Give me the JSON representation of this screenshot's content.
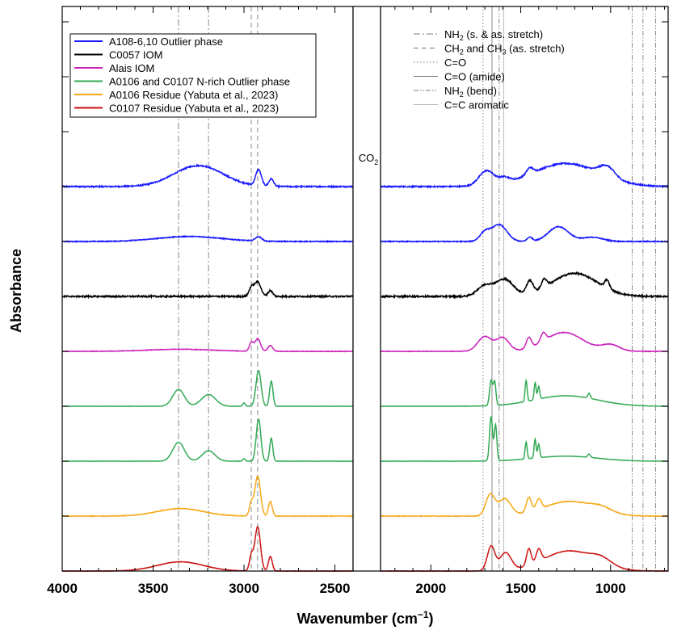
{
  "chart_data": {
    "type": "line",
    "xlabel": "Wavenumber (cm",
    "xlabel_sup": "−1",
    "xlabel_tail": ")",
    "ylabel": "Absorbance",
    "xlim_left_panel": [
      4000,
      2400
    ],
    "xlim_right_panel": [
      2280,
      680
    ],
    "x_ticks_left": [
      4000,
      3500,
      3000,
      2500
    ],
    "x_ticks_right": [
      2000,
      1500,
      1000
    ],
    "gap_label": "CO",
    "gap_label_sub": "2",
    "legend": {
      "placement": "top-left",
      "entries": [
        {
          "name": "A108-6,10 Outlier phase",
          "color": "#1a1aff"
        },
        {
          "name": "C0057 IOM",
          "color": "#000000"
        },
        {
          "name": "Alais IOM",
          "color": "#cc22bb"
        },
        {
          "name": "A0106 and C0107 N-rich Outlier phase",
          "color": "#33aa55"
        },
        {
          "name": "A0106 Residue (Yabuta et al., 2023)",
          "color": "#f5a818"
        },
        {
          "name": "C0107 Residue (Yabuta et al., 2023)",
          "color": "#cc1111"
        }
      ]
    },
    "reference_lines_legend": [
      {
        "pre": "NH",
        "sub": "2",
        "post": " (s. & as. stretch)",
        "dash": "8 3 2 3"
      },
      {
        "pre": "CH",
        "sub": "2",
        "mid": " and CH",
        "sub2": "3",
        "post": " (as. stretch)",
        "dash": "6 4"
      },
      {
        "pre": "C=O",
        "dash": "1.5 2.5"
      },
      {
        "pre": "C=O (amide)",
        "dash": ""
      },
      {
        "pre": "NH",
        "sub": "2",
        "post": " (bend)",
        "dash": "6 2 1.5 2 1.5 2"
      },
      {
        "pre": "C=C aromatic",
        "dash": "",
        "light": true
      }
    ],
    "reference_lines": [
      {
        "x": 3360,
        "kind": "NH2 stretch"
      },
      {
        "x": 3195,
        "kind": "NH2 stretch"
      },
      {
        "x": 2960,
        "kind": "CH2 and CH3"
      },
      {
        "x": 2925,
        "kind": "CH2 and CH3"
      },
      {
        "x": 1710,
        "kind": "C=O"
      },
      {
        "x": 1660,
        "kind": "C=O (amide)"
      },
      {
        "x": 1620,
        "kind": "NH2 bend"
      },
      {
        "x": 1595,
        "kind": "C=C aromatic"
      },
      {
        "x": 880,
        "kind": "NH2 bend"
      },
      {
        "x": 820,
        "kind": "NH2 bend"
      },
      {
        "x": 750,
        "kind": "NH2 bend"
      }
    ],
    "series": [
      {
        "color": "#1a1aff",
        "offset": 8,
        "height": 0.75,
        "noise": 0.03,
        "peaks": [
          [
            3250,
            0.5,
            190
          ],
          [
            2920,
            0.38,
            22
          ],
          [
            2850,
            0.18,
            18
          ],
          [
            1690,
            0.35,
            60
          ],
          [
            1590,
            0.12,
            40
          ],
          [
            1450,
            0.15,
            25
          ],
          [
            1250,
            0.55,
            260
          ],
          [
            1020,
            0.25,
            60
          ]
        ]
      },
      {
        "color": "#1a1aff",
        "offset": 7,
        "height": 0.75,
        "noise": 0.02,
        "peaks": [
          [
            3300,
            0.12,
            250
          ],
          [
            2920,
            0.1,
            25
          ],
          [
            1700,
            0.2,
            40
          ],
          [
            1620,
            0.4,
            60
          ],
          [
            1450,
            0.1,
            20
          ],
          [
            1290,
            0.35,
            80
          ],
          [
            1100,
            0.1,
            80
          ]
        ]
      },
      {
        "color": "#000000",
        "offset": 6,
        "height": 0.75,
        "noise": 0.035,
        "peaks": [
          [
            2925,
            0.35,
            25
          ],
          [
            2960,
            0.2,
            18
          ],
          [
            2855,
            0.14,
            18
          ],
          [
            1700,
            0.25,
            60
          ],
          [
            1590,
            0.4,
            70
          ],
          [
            1450,
            0.3,
            25
          ],
          [
            1370,
            0.2,
            20
          ],
          [
            1200,
            0.55,
            180
          ],
          [
            1020,
            0.2,
            18
          ]
        ]
      },
      {
        "color": "#cc22bb",
        "offset": 5,
        "height": 0.75,
        "noise": 0.012,
        "peaks": [
          [
            3350,
            0.05,
            250
          ],
          [
            2925,
            0.3,
            22
          ],
          [
            2960,
            0.2,
            15
          ],
          [
            2855,
            0.14,
            18
          ],
          [
            1700,
            0.35,
            55
          ],
          [
            1600,
            0.32,
            50
          ],
          [
            1455,
            0.25,
            20
          ],
          [
            1375,
            0.2,
            20
          ],
          [
            1260,
            0.45,
            150
          ],
          [
            1000,
            0.15,
            70
          ]
        ]
      },
      {
        "color": "#33aa55",
        "offset": 4,
        "height": 0.75,
        "noise": 0.006,
        "peaks": [
          [
            3360,
            0.4,
            45
          ],
          [
            3195,
            0.28,
            55
          ],
          [
            2920,
            0.85,
            20
          ],
          [
            2850,
            0.6,
            13
          ],
          [
            3000,
            0.08,
            10
          ],
          [
            1665,
            0.6,
            12
          ],
          [
            1645,
            0.55,
            10
          ],
          [
            1470,
            0.5,
            8
          ],
          [
            1420,
            0.4,
            8
          ],
          [
            1400,
            0.3,
            8
          ],
          [
            1250,
            0.25,
            250
          ],
          [
            1120,
            0.12,
            10
          ]
        ]
      },
      {
        "color": "#33aa55",
        "offset": 3,
        "height": 0.75,
        "noise": 0.005,
        "peaks": [
          [
            3360,
            0.45,
            45
          ],
          [
            3195,
            0.25,
            50
          ],
          [
            2920,
            1.0,
            18
          ],
          [
            2850,
            0.55,
            12
          ],
          [
            3000,
            0.06,
            10
          ],
          [
            1665,
            1.05,
            12
          ],
          [
            1640,
            0.85,
            10
          ],
          [
            1470,
            0.4,
            8
          ],
          [
            1420,
            0.45,
            8
          ],
          [
            1400,
            0.32,
            8
          ],
          [
            1250,
            0.12,
            250
          ],
          [
            1120,
            0.08,
            10
          ]
        ]
      },
      {
        "color": "#f5a818",
        "offset": 2,
        "height": 0.75,
        "noise": 0.012,
        "peaks": [
          [
            3350,
            0.18,
            180
          ],
          [
            2925,
            0.95,
            22
          ],
          [
            2960,
            0.3,
            15
          ],
          [
            2855,
            0.35,
            15
          ],
          [
            1670,
            0.5,
            35
          ],
          [
            1590,
            0.4,
            50
          ],
          [
            1455,
            0.35,
            20
          ],
          [
            1400,
            0.25,
            20
          ],
          [
            1230,
            0.35,
            200
          ],
          [
            1050,
            0.1,
            80
          ]
        ]
      },
      {
        "color": "#cc1111",
        "offset": 1,
        "height": 0.75,
        "noise": 0.008,
        "peaks": [
          [
            3350,
            0.22,
            180
          ],
          [
            2925,
            1.05,
            22
          ],
          [
            2960,
            0.35,
            15
          ],
          [
            2855,
            0.35,
            15
          ],
          [
            1665,
            0.58,
            30
          ],
          [
            1585,
            0.42,
            45
          ],
          [
            1455,
            0.4,
            18
          ],
          [
            1400,
            0.3,
            20
          ],
          [
            1230,
            0.48,
            200
          ],
          [
            1050,
            0.15,
            80
          ]
        ]
      }
    ]
  }
}
